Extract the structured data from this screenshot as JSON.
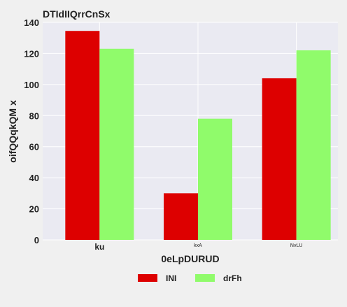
{
  "chart_data": {
    "type": "bar",
    "title": "DTIdIIQrrCnSx",
    "xlabel": "0eLpDURUD",
    "ylabel": "oifQQqkQM x",
    "categories": [
      "ku",
      "kxA",
      "NvLU"
    ],
    "category_label_emphasis": [
      "large",
      "small",
      "small"
    ],
    "series": [
      {
        "name": "INI",
        "color": "#dd0000",
        "values": [
          134.5,
          30,
          104
        ]
      },
      {
        "name": "drFh",
        "color": "#90fb6b",
        "values": [
          123,
          78,
          122
        ]
      }
    ],
    "ylim": [
      0,
      140
    ],
    "yticks": [
      0,
      20,
      40,
      60,
      80,
      100,
      120,
      140
    ],
    "grid": true,
    "legend_position": "bottom-center"
  },
  "colors": {
    "background": "#f0f0f0",
    "plot_background": "#eaeaf2",
    "grid": "#ffffff",
    "text": "#222222"
  }
}
